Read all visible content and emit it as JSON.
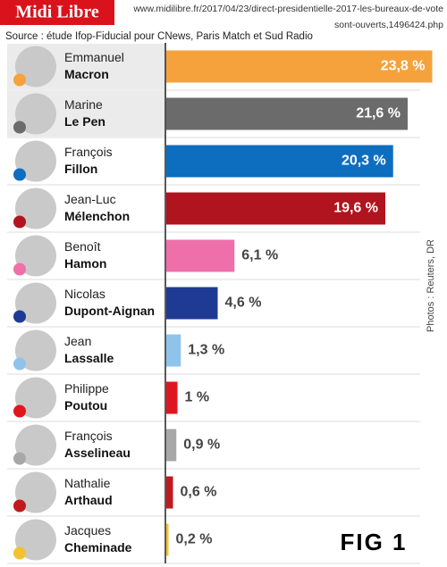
{
  "header": {
    "brand": "Midi Libre",
    "url_line1": "www.midilibre.fr/2017/04/23/direct-presidentielle-2017-les-bureaux-de-vote",
    "url_line2": "sont-ouverts,1496424.php"
  },
  "chart_data": {
    "type": "bar",
    "subtitle": "Source : étude Ifop-Fiducial pour CNews, Paris Match et Sud Radio",
    "first_names": [
      "Emmanuel",
      "Marine",
      "François",
      "Jean-Luc",
      "Benoît",
      "Nicolas",
      "Jean",
      "Philippe",
      "François",
      "Nathalie",
      "Jacques"
    ],
    "categories": [
      "Macron",
      "Le Pen",
      "Fillon",
      "Mélenchon",
      "Hamon",
      "Dupont-Aignan",
      "Lassalle",
      "Poutou",
      "Asselineau",
      "Arthaud",
      "Cheminade"
    ],
    "values": [
      23.8,
      21.6,
      20.3,
      19.6,
      6.1,
      4.6,
      1.3,
      1,
      0.9,
      0.6,
      0.2
    ],
    "value_labels": [
      "23,8 %",
      "21,6 %",
      "20,3 %",
      "19,6 %",
      "6,1 %",
      "4,6 %",
      "1,3 %",
      "1 %",
      "0,9 %",
      "0,6 %",
      "0,2 %"
    ],
    "colors": [
      "#f5a23c",
      "#6b6b6b",
      "#0d6ec0",
      "#b0141e",
      "#ef6faa",
      "#1f3a93",
      "#8fc3ea",
      "#e0161e",
      "#a8a8a8",
      "#c01a1e",
      "#f2c230"
    ],
    "credit": "Photos : Reuters, DR",
    "figure_label": "FIG 1"
  }
}
